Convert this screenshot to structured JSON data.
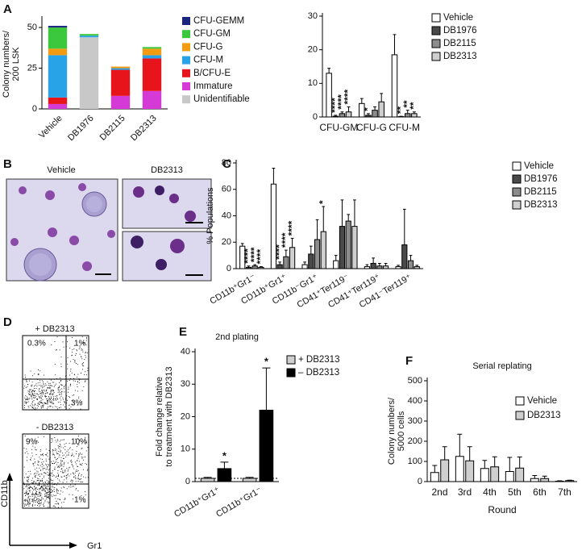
{
  "panel_labels": [
    "A",
    "B",
    "C",
    "D",
    "E",
    "F"
  ],
  "micrographs": {
    "labels": [
      "Vehicle",
      "DB2313"
    ]
  },
  "flow_cytometry": {
    "plots": [
      {
        "label": "+ DB2313",
        "quadrants": [
          "0.3%",
          "1%",
          "3%"
        ]
      },
      {
        "label": "- DB2313",
        "quadrants": [
          "9%",
          "10%",
          "1%"
        ]
      }
    ],
    "y_axis": "CD11b",
    "x_axis": "Gr1"
  },
  "chart_data": [
    {
      "type": "stacked_bar",
      "ylabel": [
        "Colony numbers/",
        "200 LSK"
      ],
      "categories": [
        "Vehicle",
        "DB1976",
        "DB2115",
        "DB2313"
      ],
      "ylim": [
        0,
        55
      ],
      "yticks": [
        0,
        25,
        50
      ],
      "series": [
        {
          "name": "CFU-GEMM",
          "color": "#1a237e",
          "values": [
            1,
            0,
            0,
            0
          ]
        },
        {
          "name": "CFU-GM",
          "color": "#3cc83c",
          "values": [
            13,
            1,
            0,
            1
          ]
        },
        {
          "name": "CFU-G",
          "color": "#f39c12",
          "values": [
            4,
            0,
            1,
            4
          ]
        },
        {
          "name": "CFU-M",
          "color": "#29a3e8",
          "values": [
            26,
            1,
            1,
            2
          ]
        },
        {
          "name": "B/CFU-E",
          "color": "#e8141c",
          "values": [
            4,
            0,
            16,
            20
          ]
        },
        {
          "name": "Immature",
          "color": "#d63ad6",
          "values": [
            3,
            0,
            8,
            11
          ]
        },
        {
          "name": "Unidentifiable",
          "color": "#c8c8c8",
          "values": [
            0,
            44,
            0,
            0
          ]
        }
      ]
    },
    {
      "type": "grouped_bar",
      "categories": [
        "CFU-GM",
        "CFU-G",
        "CFU-M"
      ],
      "ylim": [
        0,
        30
      ],
      "yticks": [
        0,
        10,
        20,
        30
      ],
      "series": [
        {
          "name": "Vehicle",
          "color": "#ffffff",
          "values": [
            13,
            4,
            18.5
          ],
          "errors": [
            1.5,
            1.5,
            6
          ],
          "significance": [
            null,
            null,
            null
          ]
        },
        {
          "name": "DB1976",
          "color": "#4a4a4a",
          "values": [
            0.2,
            0.5,
            0.1
          ],
          "errors": [
            0.3,
            0.5,
            0.1
          ],
          "significance": [
            "****",
            "*",
            "**"
          ]
        },
        {
          "name": "DB2115",
          "color": "#8c8c8c",
          "values": [
            1,
            2,
            1
          ],
          "errors": [
            0.5,
            1,
            1
          ],
          "significance": [
            "****",
            null,
            "**"
          ]
        },
        {
          "name": "DB2313",
          "color": "#cfcfcf",
          "values": [
            1.5,
            4.5,
            1
          ],
          "errors": [
            1.5,
            2.5,
            0.5
          ],
          "significance": [
            "****",
            null,
            "**"
          ]
        }
      ]
    },
    {
      "type": "grouped_bar",
      "ylabel": [
        "% Populations"
      ],
      "categories": [
        "CD11b⁺Gr1⁻",
        "CD11b⁺Gr1⁺",
        "CD11b⁻Gr1⁺",
        "CD41⁺Ter119⁻",
        "CD41⁺Ter119⁺",
        "CD41⁻Ter119⁺"
      ],
      "ylim": [
        0,
        80
      ],
      "yticks": [
        0,
        20,
        40,
        60,
        80
      ],
      "series": [
        {
          "name": "Vehicle",
          "color": "#ffffff",
          "values": [
            17,
            64,
            3,
            6,
            1.5,
            1.5
          ],
          "errors": [
            2,
            12,
            2,
            4,
            1.5,
            1
          ],
          "significance": [
            null,
            null,
            null,
            null,
            null,
            null
          ]
        },
        {
          "name": "DB1976",
          "color": "#4a4a4a",
          "values": [
            1,
            3,
            11,
            32,
            4,
            18
          ],
          "errors": [
            1,
            2,
            6,
            20,
            4,
            27
          ],
          "significance": [
            "****",
            "****",
            null,
            null,
            null,
            null
          ]
        },
        {
          "name": "DB2115",
          "color": "#8c8c8c",
          "values": [
            2,
            9,
            22,
            36,
            2,
            6
          ],
          "errors": [
            1,
            5,
            15,
            5,
            2,
            4
          ],
          "significance": [
            "****",
            "****",
            null,
            null,
            null,
            null
          ]
        },
        {
          "name": "DB2313",
          "color": "#cfcfcf",
          "values": [
            1,
            16,
            28,
            32,
            2,
            1.5
          ],
          "errors": [
            0.5,
            7,
            19,
            20,
            2,
            1
          ],
          "significance": [
            "****",
            "****",
            "*",
            null,
            null,
            null
          ]
        }
      ]
    },
    {
      "type": "grouped_bar",
      "title": "2nd plating",
      "ylabel": [
        "Fold change relative",
        "to treatment with DB2313"
      ],
      "categories": [
        "CD11b⁺Gr1⁺",
        "CD11b⁺Gr1⁻"
      ],
      "ylim": [
        0,
        40
      ],
      "yticks": [
        0,
        10,
        20,
        30,
        40
      ],
      "reference_line": 1,
      "series": [
        {
          "name": "+ DB2313",
          "color": "#cfcfcf",
          "values": [
            1,
            1
          ],
          "errors": [
            0.3,
            0.3
          ],
          "significance": [
            null,
            null
          ]
        },
        {
          "name": "– DB2313",
          "color": "#000000",
          "values": [
            4,
            22
          ],
          "errors": [
            2,
            13
          ],
          "significance": [
            "*",
            "*"
          ]
        }
      ]
    },
    {
      "type": "grouped_bar",
      "title": "Serial replating",
      "ylabel": [
        "Colony numbers/",
        "5000 cells"
      ],
      "xlabel": "Round",
      "categories": [
        "2nd",
        "3rd",
        "4th",
        "5th",
        "6th",
        "7th"
      ],
      "ylim": [
        0,
        500
      ],
      "yticks": [
        0,
        100,
        200,
        300,
        400,
        500
      ],
      "series": [
        {
          "name": "Vehicle",
          "color": "#ffffff",
          "values": [
            45,
            125,
            65,
            50,
            15,
            2
          ],
          "errors": [
            35,
            110,
            40,
            70,
            15,
            2
          ]
        },
        {
          "name": "DB2313",
          "color": "#cfcfcf",
          "values": [
            108,
            103,
            73,
            67,
            15,
            5
          ],
          "errors": [
            65,
            70,
            50,
            55,
            12,
            2
          ]
        }
      ]
    }
  ]
}
